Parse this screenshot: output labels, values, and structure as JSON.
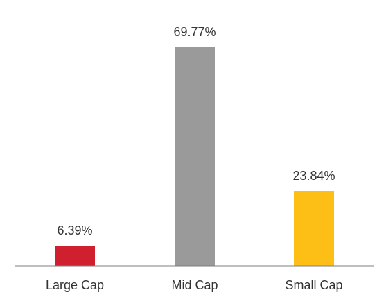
{
  "chart_data": {
    "type": "bar",
    "categories": [
      "Large Cap",
      "Mid Cap",
      "Small Cap"
    ],
    "values": [
      6.39,
      69.77,
      23.84
    ],
    "data_labels": [
      "6.39%",
      "69.77%",
      "23.84%"
    ],
    "colors": [
      "#d0202f",
      "#9a9a9b",
      "#fdbf15"
    ],
    "axis_color": "#7f7f7f",
    "title": "",
    "xlabel": "",
    "ylabel": "",
    "ylim": [
      0,
      69.77
    ],
    "grid": false,
    "legend": "none"
  }
}
